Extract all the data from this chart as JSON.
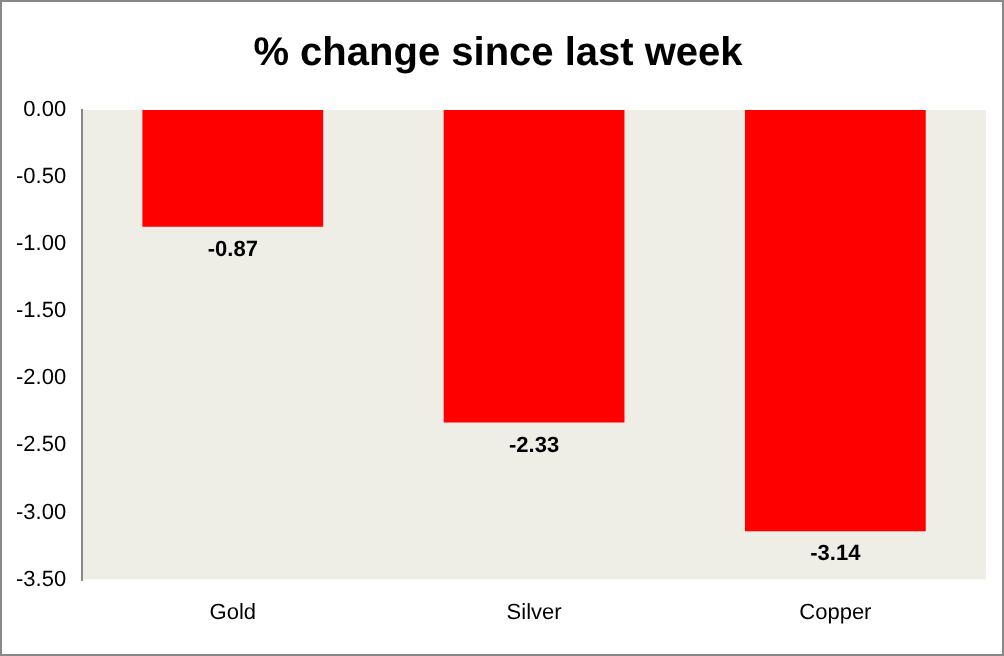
{
  "chart_data": {
    "type": "bar",
    "title": "% change since last week",
    "categories": [
      "Gold",
      "Silver",
      "Copper"
    ],
    "values": [
      -0.87,
      -2.33,
      -3.14
    ],
    "color": "#ff0000",
    "ylim": [
      -3.5,
      0
    ],
    "yticks": [
      {
        "value": 0,
        "label": "0.00"
      },
      {
        "value": -0.5,
        "label": "-0.50"
      },
      {
        "value": -1,
        "label": "-1.00"
      },
      {
        "value": -1.5,
        "label": "-1.50"
      },
      {
        "value": -2,
        "label": "-2.00"
      },
      {
        "value": -2.5,
        "label": "-2.50"
      },
      {
        "value": -3,
        "label": "-3.00"
      },
      {
        "value": -3.5,
        "label": "-3.50"
      }
    ],
    "grid": false,
    "legend": false,
    "data_labels": true
  }
}
